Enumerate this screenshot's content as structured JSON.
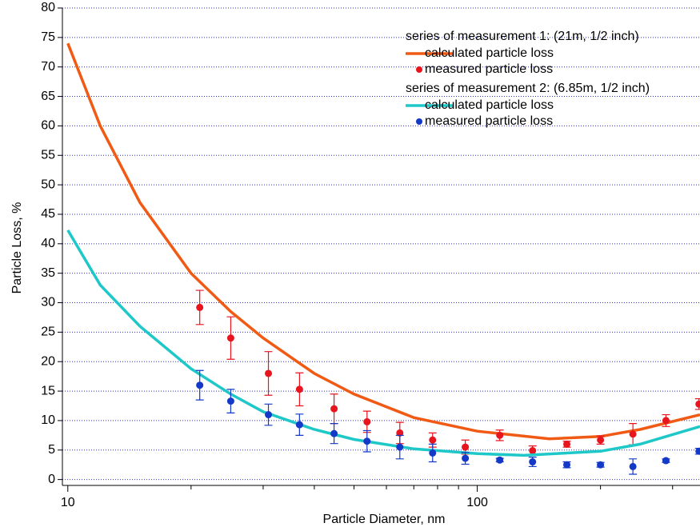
{
  "chart_data": {
    "type": "line",
    "xlabel": "Particle Diameter, nm",
    "ylabel": "Particle Loss, %",
    "xscale": "log",
    "xlim": [
      9.7,
      350
    ],
    "ylim": [
      -1,
      80
    ],
    "xticks": [
      10,
      100
    ],
    "xminor_ticks": [
      20,
      30,
      40,
      50,
      60,
      70,
      80,
      90,
      200,
      300
    ],
    "yticks": [
      0,
      5,
      10,
      15,
      20,
      25,
      30,
      35,
      40,
      45,
      50,
      55,
      60,
      65,
      70,
      75,
      80
    ],
    "grid": true,
    "legend_position": "upper right",
    "legend_groups": [
      "series of measurement 1: (21m, 1/2 inch)",
      "series of measurement 2: (6.85m, 1/2 inch)"
    ],
    "series": [
      {
        "name": "calculated particle loss",
        "group": 0,
        "type": "line",
        "color": "#f05a14",
        "x": [
          10,
          12,
          15,
          20,
          25,
          30,
          40,
          50,
          70,
          100,
          150,
          200,
          250,
          350
        ],
        "values": [
          74,
          60,
          47,
          35,
          28.5,
          24,
          18,
          14.5,
          10.5,
          8.2,
          6.9,
          7.3,
          8.5,
          11
        ]
      },
      {
        "name": "measured particle loss",
        "group": 0,
        "type": "scatter",
        "color": "#e8141e",
        "x": [
          21,
          25,
          30.9,
          36.8,
          44.7,
          53.8,
          64.7,
          77.8,
          93.5,
          113.5,
          136.5,
          165.5,
          200,
          240,
          289,
          348
        ],
        "values": [
          29.2,
          24,
          18,
          15.3,
          12,
          9.8,
          7.9,
          6.7,
          5.5,
          7.5,
          4.9,
          6,
          6.7,
          7.7,
          10,
          12.8
        ],
        "errors": [
          2.9,
          3.6,
          3.7,
          2.8,
          2.5,
          1.8,
          1.8,
          1.2,
          1.2,
          0.9,
          0.8,
          0.5,
          0.7,
          1.8,
          1.0,
          0.9
        ]
      },
      {
        "name": "calculated particle loss",
        "group": 1,
        "type": "line",
        "color": "#1ec8c8",
        "x": [
          10,
          12,
          15,
          20,
          25,
          30,
          40,
          50,
          70,
          100,
          130,
          200,
          250,
          350
        ],
        "values": [
          42.3,
          33,
          26,
          18.8,
          14.5,
          11.5,
          8.5,
          6.8,
          5.2,
          4.4,
          4.1,
          4.8,
          6,
          9
        ]
      },
      {
        "name": "measured particle loss",
        "group": 1,
        "type": "scatter",
        "color": "#1438c8",
        "x": [
          21,
          25,
          30.9,
          36.8,
          44.7,
          53.8,
          64.7,
          77.8,
          93.5,
          113.5,
          136.5,
          165.5,
          200,
          240,
          289,
          348
        ],
        "values": [
          16,
          13.3,
          11,
          9.3,
          7.8,
          6.5,
          5.5,
          4.5,
          3.6,
          3.3,
          3.0,
          2.5,
          2.5,
          2.2,
          3.2,
          4.8
        ],
        "errors": [
          2.5,
          2,
          1.8,
          1.8,
          1.7,
          1.8,
          2,
          1.5,
          1,
          0.3,
          0.8,
          0.5,
          0.4,
          1.3,
          0.3,
          0.5
        ]
      }
    ]
  }
}
